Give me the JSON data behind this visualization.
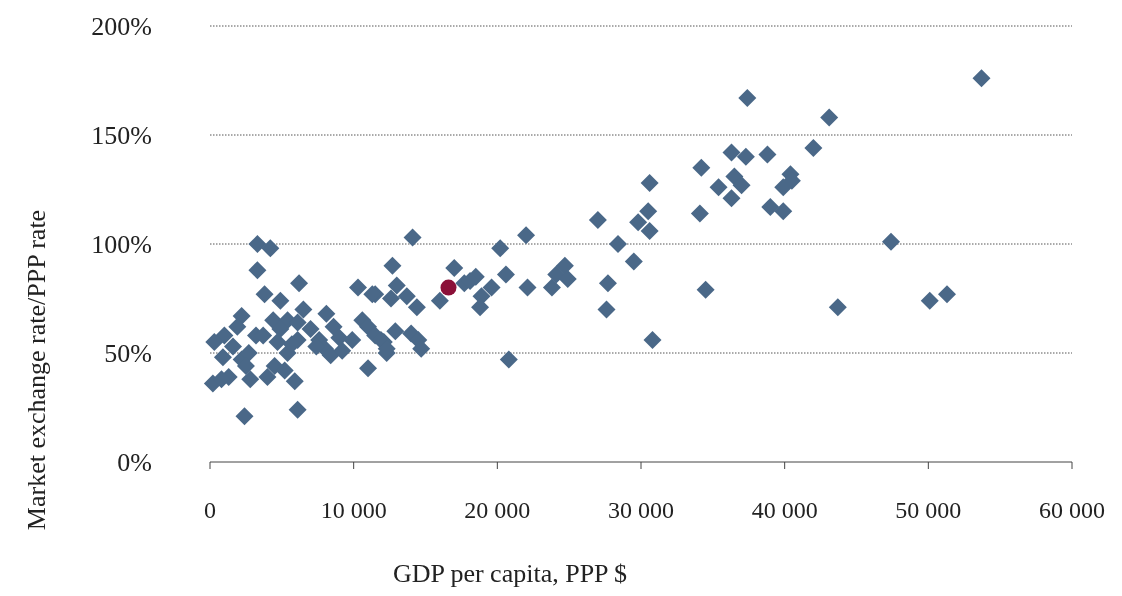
{
  "chart_data": {
    "type": "scatter",
    "xlabel": "GDP per capita, PPP $",
    "ylabel": "Market exchange rate/PPP rate",
    "xlim": [
      0,
      60000
    ],
    "ylim": [
      0,
      200
    ],
    "xticks": [
      0,
      {
        "value": 10000,
        "label": "10 000"
      },
      {
        "value": 20000,
        "label": "20 000"
      },
      {
        "value": 30000,
        "label": "30 000"
      },
      {
        "value": 40000,
        "label": "40 000"
      },
      {
        "value": 50000,
        "label": "50 000"
      },
      {
        "value": 60000,
        "label": "60 000"
      }
    ],
    "yticks": [
      {
        "value": 0,
        "label": "0%"
      },
      {
        "value": 50,
        "label": "50%"
      },
      {
        "value": 100,
        "label": "100%"
      },
      {
        "value": 150,
        "label": "150%"
      },
      {
        "value": 200,
        "label": "200%"
      }
    ],
    "grid": "y",
    "series": [
      {
        "color": "#4a6888",
        "marker": "diamond",
        "x": [
          53700,
          37400,
          43100,
          47400,
          50100,
          51300,
          43700,
          36300,
          37300,
          38800,
          42000,
          34200,
          36500,
          37000,
          35400,
          36300,
          40400,
          40500,
          39900,
          39000,
          39900,
          34100,
          30600,
          30500,
          29800,
          30600,
          27000,
          28400,
          29500,
          27700,
          27600,
          30800,
          34500,
          14100,
          22000,
          20200,
          12700,
          17000,
          16000,
          17700,
          18500,
          18100,
          19600,
          18900,
          18800,
          20600,
          22100,
          23800,
          24100,
          24700,
          24900,
          20800,
          11500,
          13000,
          12600,
          13700,
          14400,
          12900,
          14000,
          14500,
          14700,
          12100,
          12300,
          3300,
          4200,
          3300,
          6200,
          3800,
          4900,
          2200,
          1900,
          1000,
          300,
          3200,
          4400,
          5400,
          6500,
          4900,
          4700,
          3700,
          6100,
          6100,
          7000,
          8100,
          7600,
          8600,
          9000,
          8000,
          7400,
          8400,
          9200,
          9900,
          10600,
          10300,
          11300,
          11000,
          11500,
          11900,
          12300,
          11000,
          1600,
          2200,
          900,
          2700,
          2500,
          2800,
          200,
          1300,
          800,
          4000,
          4500,
          5200,
          5900,
          5400,
          5700,
          6100,
          2400
        ],
        "values": [
          176,
          167,
          158,
          101,
          74,
          77,
          71,
          142,
          140,
          141,
          144,
          135,
          131,
          127,
          126,
          121,
          132,
          129,
          126,
          117,
          115,
          114,
          128,
          115,
          110,
          106,
          111,
          100,
          92,
          82,
          70,
          56,
          79,
          103,
          104,
          98,
          90,
          89,
          74,
          82,
          85,
          83,
          80,
          76,
          71,
          86,
          80,
          80,
          86,
          90,
          84,
          47,
          77,
          81,
          75,
          76,
          71,
          60,
          59,
          56,
          52,
          55,
          50,
          100,
          98,
          88,
          82,
          77,
          74,
          67,
          62,
          58,
          55,
          58,
          65,
          65,
          70,
          61,
          55,
          58,
          64,
          56,
          61,
          68,
          56,
          62,
          57,
          52,
          53,
          49,
          51,
          56,
          65,
          80,
          77,
          62,
          58,
          56,
          52,
          43,
          53,
          47,
          48,
          50,
          44,
          38,
          36,
          39,
          38,
          39,
          44,
          42,
          37,
          50,
          54,
          24,
          21
        ]
      },
      {
        "color": "#8b1038",
        "marker": "circle",
        "x": [
          16600
        ],
        "values": [
          80
        ]
      }
    ]
  }
}
